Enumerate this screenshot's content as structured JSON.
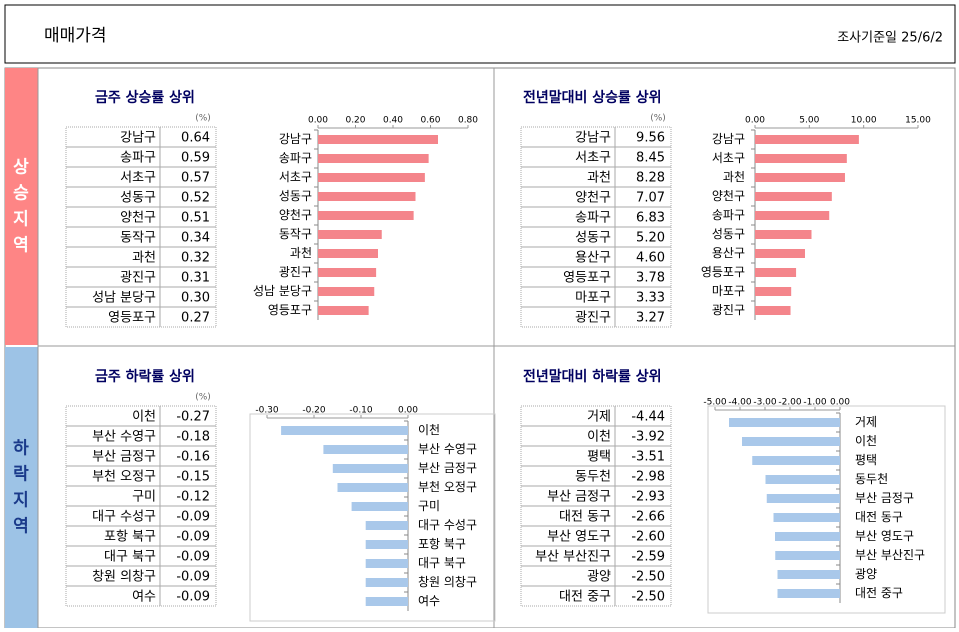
{
  "header": {
    "title": "매매가격",
    "date": "조사기준일  25/6/2"
  },
  "sections": [
    "상승지역",
    "하락지역"
  ],
  "chart_data": [
    {
      "type": "bar",
      "orientation": "horizontal",
      "title": "금주 상승률 상위",
      "unit": "(%)",
      "color": "#f4858b",
      "categories": [
        "강남구",
        "송파구",
        "서초구",
        "성동구",
        "양천구",
        "동작구",
        "과천",
        "광진구",
        "성남 분당구",
        "영등포구"
      ],
      "values": [
        0.64,
        0.59,
        0.57,
        0.52,
        0.51,
        0.34,
        0.32,
        0.31,
        0.3,
        0.27
      ],
      "value_labels": [
        "0.64",
        "0.59",
        "0.57",
        "0.52",
        "0.51",
        "0.34",
        "0.32",
        "0.31",
        "0.30",
        "0.27"
      ],
      "xlim": [
        0,
        0.8
      ],
      "xticks": [
        {
          "value": 0,
          "label": "0.00"
        },
        {
          "value": 0.2,
          "label": "0.20"
        },
        {
          "value": 0.4,
          "label": "0.40"
        },
        {
          "value": 0.6,
          "label": "0.60"
        },
        {
          "value": 0.8,
          "label": "0.80"
        }
      ]
    },
    {
      "type": "bar",
      "orientation": "horizontal",
      "title": "전년말대비 상승률 상위",
      "unit": "(%)",
      "color": "#f4858b",
      "categories": [
        "강남구",
        "서초구",
        "과천",
        "양천구",
        "송파구",
        "성동구",
        "용산구",
        "영등포구",
        "마포구",
        "광진구"
      ],
      "values": [
        9.56,
        8.45,
        8.28,
        7.07,
        6.83,
        5.2,
        4.6,
        3.78,
        3.33,
        3.27
      ],
      "value_labels": [
        "9.56",
        "8.45",
        "8.28",
        "7.07",
        "6.83",
        "5.20",
        "4.60",
        "3.78",
        "3.33",
        "3.27"
      ],
      "xlim": [
        0,
        15
      ],
      "xticks": [
        {
          "value": 0,
          "label": "0.00"
        },
        {
          "value": 5,
          "label": "5.00"
        },
        {
          "value": 10,
          "label": "10.00"
        },
        {
          "value": 15,
          "label": "15.00"
        }
      ]
    },
    {
      "type": "bar",
      "orientation": "horizontal",
      "title": "금주 하락률 상위",
      "unit": "(%)",
      "color": "#a9c8ea",
      "categories": [
        "이천",
        "부산 수영구",
        "부산 금정구",
        "부천 오정구",
        "구미",
        "대구 수성구",
        "포항 북구",
        "대구 북구",
        "창원 의창구",
        "여수"
      ],
      "values": [
        -0.27,
        -0.18,
        -0.16,
        -0.15,
        -0.12,
        -0.09,
        -0.09,
        -0.09,
        -0.09,
        -0.09
      ],
      "xlim": [
        -0.3,
        0
      ],
      "xticks": [
        {
          "value": -0.3,
          "label": "-0.30"
        },
        {
          "value": -0.2,
          "label": "-0.20"
        },
        {
          "value": -0.1,
          "label": "-0.10"
        },
        {
          "value": 0,
          "label": "0.00"
        }
      ]
    },
    {
      "type": "bar",
      "orientation": "horizontal",
      "title": "전년말대비 하락률 상위",
      "color": "#a9c8ea",
      "categories": [
        "거제",
        "이천",
        "평택",
        "동두천",
        "부산 금정구",
        "대전 동구",
        "부산 영도구",
        "부산 부산진구",
        "광양",
        "대전 중구"
      ],
      "values": [
        -4.44,
        -3.92,
        -3.51,
        -2.98,
        -2.93,
        -2.66,
        -2.6,
        -2.59,
        -2.5,
        -2.5
      ],
      "value_labels": [
        "-4.44",
        "-3.92",
        "-3.51",
        "-2.98",
        "-2.93",
        "-2.66",
        "-2.60",
        "-2.59",
        "-2.50",
        "-2.50"
      ],
      "xlim": [
        -5,
        0
      ],
      "xticks": [
        {
          "value": -5,
          "label": "-5.00"
        },
        {
          "value": -4,
          "label": "-4.00"
        },
        {
          "value": -3,
          "label": "-3.00"
        },
        {
          "value": -2,
          "label": "-2.00"
        },
        {
          "value": -1,
          "label": "-1.00"
        },
        {
          "value": 0,
          "label": "0.00"
        }
      ]
    }
  ]
}
